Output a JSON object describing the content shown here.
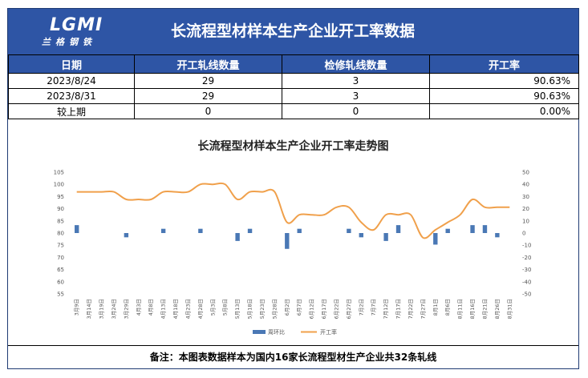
{
  "header": {
    "logo_text": "LGMI",
    "logo_subtitle": "兰格钢铁",
    "title": "长流程型材样本生产企业开工率数据"
  },
  "table": {
    "columns": [
      "日期",
      "开工轧线数量",
      "检修轧线数量",
      "开工率"
    ],
    "rows": [
      [
        "2023/8/24",
        "29",
        "3",
        "90.63%"
      ],
      [
        "2023/8/31",
        "29",
        "3",
        "90.63%"
      ],
      [
        "较上期",
        "0",
        "0",
        "0.00%"
      ]
    ]
  },
  "note": "备注：本图表数据样本为国内16家长流程型材生产企业共32条轧线",
  "colors": {
    "header_bg": "#2e55a5",
    "bar": "#4a78b5",
    "line": "#f0a04b"
  },
  "chart_data": {
    "type": "bar+line",
    "title": "长流程型材样本生产企业开工率走势图",
    "categories": [
      "3月9日",
      "3月14日",
      "3月19日",
      "3月24日",
      "3月29日",
      "4月3日",
      "4月8日",
      "4月13日",
      "4月18日",
      "4月23日",
      "4月28日",
      "5月3日",
      "5月8日",
      "5月13日",
      "5月18日",
      "5月23日",
      "5月28日",
      "6月2日",
      "6月7日",
      "6月12日",
      "6月17日",
      "6月22日",
      "6月27日",
      "7月2日",
      "7月7日",
      "7月12日",
      "7月17日",
      "7月22日",
      "7月27日",
      "8月1日",
      "8月6日",
      "8月11日",
      "8月16日",
      "8月21日",
      "8月26日",
      "8月31日"
    ],
    "series": [
      {
        "name": "周环比",
        "type": "bar",
        "axis": "right",
        "values": [
          6.5,
          null,
          null,
          null,
          -3.5,
          null,
          null,
          3.5,
          null,
          null,
          3.5,
          null,
          null,
          -6.5,
          3.5,
          null,
          null,
          -13,
          3.5,
          null,
          null,
          null,
          3.5,
          -3.5,
          null,
          -6.5,
          6.5,
          null,
          null,
          -9.5,
          3.5,
          null,
          6.5,
          6.5,
          -3.5,
          null
        ]
      },
      {
        "name": "开工率",
        "type": "line",
        "axis": "left",
        "values": [
          96.9,
          96.9,
          96.9,
          96.9,
          93.8,
          93.8,
          93.8,
          96.9,
          96.9,
          96.9,
          100,
          100,
          100,
          93.8,
          96.9,
          96.9,
          96.9,
          84.4,
          87.5,
          87.5,
          87.5,
          90.6,
          90.6,
          84.4,
          81.3,
          87.5,
          87.5,
          87.5,
          78.1,
          81.3,
          84.4,
          87.5,
          93.8,
          90.6,
          90.6,
          90.6
        ]
      }
    ],
    "y_left": {
      "min": 55,
      "max": 105,
      "step": 5
    },
    "y_right": {
      "min": -50,
      "max": 50,
      "step": 10
    },
    "legend_position": "bottom",
    "grid": false
  }
}
